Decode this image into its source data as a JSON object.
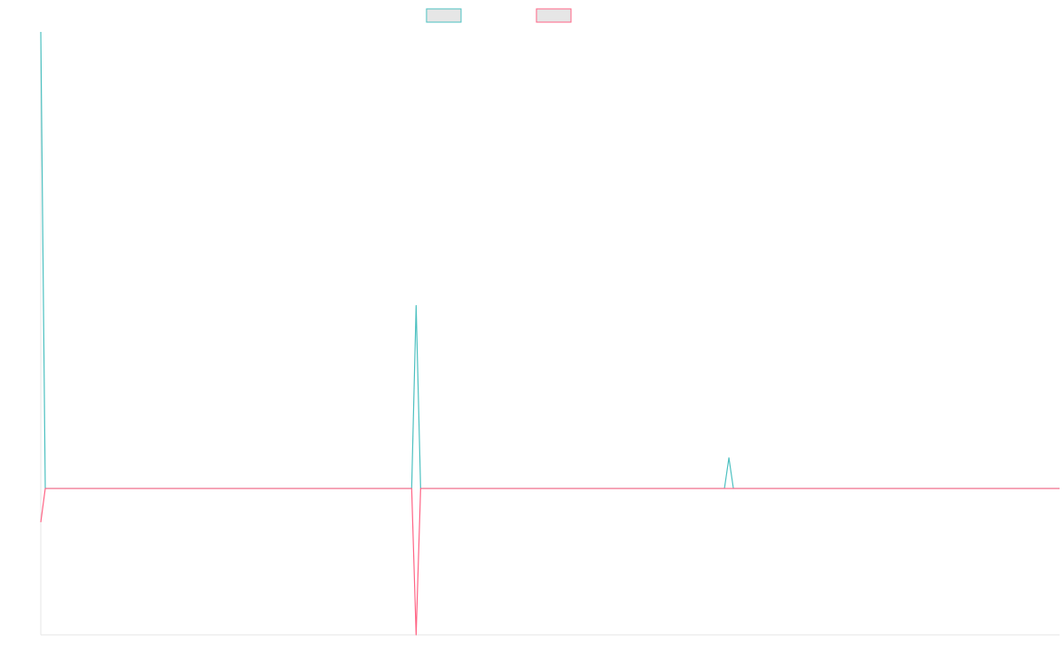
{
  "chart_data": {
    "type": "line",
    "title": "",
    "xlabel": "",
    "ylabel": "",
    "grid": false,
    "legend_position": "top-center",
    "x_count": 229,
    "ylim": [
      -1,
      3.12
    ],
    "series": [
      {
        "color": "#4bc0c0",
        "legend_fill": "#e6e6e6",
        "points": [
          [
            0,
            3.12
          ],
          [
            1,
            0
          ],
          [
            83,
            0
          ],
          [
            84,
            1.25
          ],
          [
            85,
            0
          ],
          [
            153,
            0
          ],
          [
            154,
            0.21
          ],
          [
            155,
            0
          ],
          [
            228,
            0
          ]
        ]
      },
      {
        "color": "#ff6384",
        "legend_fill": "#e6e6e6",
        "points": [
          [
            0,
            -0.23
          ],
          [
            1,
            0
          ],
          [
            83,
            0
          ],
          [
            84,
            -1.0
          ],
          [
            85,
            0
          ],
          [
            228,
            0
          ]
        ]
      }
    ]
  }
}
